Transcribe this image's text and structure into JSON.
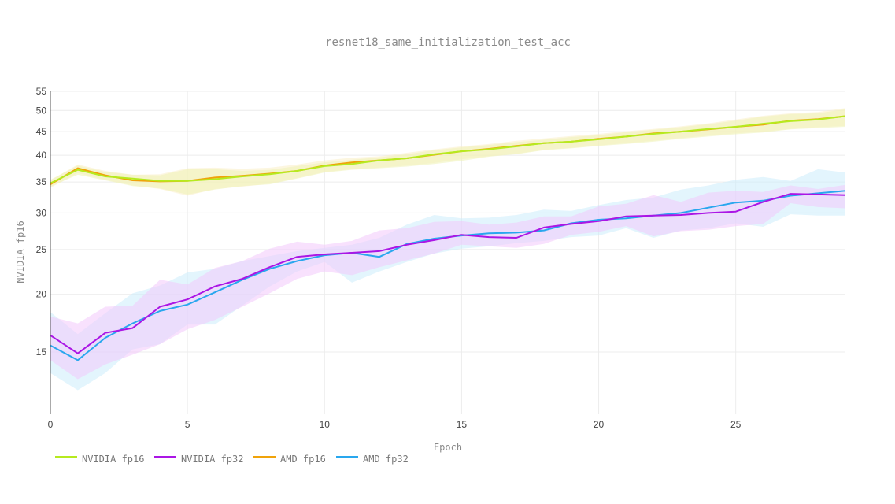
{
  "chart_data": {
    "type": "line",
    "title": "resnet18_same_initialization_test_acc",
    "xlabel": "Epoch",
    "ylabel": "NVIDIA fp16",
    "y_scale": "log",
    "xlim": [
      0,
      29
    ],
    "ylim": [
      11,
      55
    ],
    "x_ticks": [
      0,
      5,
      10,
      15,
      20,
      25
    ],
    "y_ticks": [
      15,
      20,
      25,
      30,
      35,
      40,
      45,
      50,
      55
    ],
    "grid": true,
    "legend_position": "bottom-left",
    "x": [
      0,
      1,
      2,
      3,
      4,
      5,
      6,
      7,
      8,
      9,
      10,
      11,
      12,
      13,
      14,
      15,
      16,
      17,
      18,
      19,
      20,
      21,
      22,
      23,
      24,
      25,
      26,
      27,
      28,
      29
    ],
    "series": [
      {
        "name": "NVIDIA fp16",
        "color": "#b6ea1f",
        "band_color": "#eef3b6",
        "values": [
          34.8,
          37.2,
          36.0,
          35.6,
          35.2,
          35.2,
          35.5,
          36.0,
          36.4,
          37.0,
          37.9,
          38.3,
          39.0,
          39.4,
          40.2,
          40.8,
          41.2,
          41.8,
          42.5,
          42.8,
          43.3,
          43.9,
          44.5,
          45.0,
          45.6,
          46.1,
          46.8,
          47.4,
          47.8,
          48.6
        ],
        "band_low": [
          34.2,
          36.3,
          35.3,
          34.3,
          33.9,
          32.9,
          33.7,
          34.3,
          34.6,
          35.6,
          36.7,
          37.2,
          37.5,
          37.8,
          38.3,
          38.9,
          39.7,
          40.2,
          41.0,
          41.4,
          41.9,
          42.3,
          42.8,
          43.4,
          43.9,
          44.4,
          44.8,
          45.5,
          45.8,
          46.1
        ],
        "band_high": [
          35.4,
          38.0,
          36.8,
          36.3,
          36.2,
          37.3,
          37.3,
          37.0,
          37.2,
          37.9,
          38.6,
          39.1,
          39.6,
          40.2,
          41.0,
          41.6,
          42.1,
          42.7,
          43.2,
          43.8,
          44.2,
          44.9,
          45.4,
          46.0,
          46.7,
          47.5,
          48.5,
          49.1,
          49.3,
          50.3
        ]
      },
      {
        "name": "NVIDIA fp32",
        "color": "#ab16e5",
        "band_color": "#f3c9fb",
        "values": [
          16.3,
          14.9,
          16.5,
          16.9,
          18.8,
          19.5,
          20.8,
          21.6,
          22.9,
          24.1,
          24.4,
          24.6,
          24.8,
          25.6,
          26.2,
          26.9,
          26.6,
          26.5,
          27.9,
          28.4,
          28.8,
          29.5,
          29.6,
          29.7,
          30.0,
          30.2,
          31.7,
          33.0,
          32.9,
          32.8
        ],
        "band_low": [
          14.4,
          13.1,
          14.1,
          14.8,
          15.6,
          16.8,
          17.6,
          18.8,
          20.1,
          21.6,
          22.4,
          22.0,
          22.9,
          23.7,
          24.5,
          25.6,
          25.4,
          25.2,
          25.7,
          26.9,
          27.3,
          28.1,
          26.7,
          27.4,
          27.6,
          28.1,
          28.4,
          31.5,
          30.9,
          30.7
        ],
        "band_high": [
          17.9,
          17.3,
          18.8,
          18.9,
          21.5,
          21.0,
          22.8,
          23.6,
          25.1,
          26.0,
          25.6,
          26.1,
          27.5,
          27.8,
          28.7,
          28.8,
          28.3,
          28.6,
          29.5,
          29.5,
          31.0,
          31.4,
          32.8,
          31.7,
          33.2,
          33.5,
          33.3,
          34.4,
          33.8,
          34.5
        ]
      },
      {
        "name": "AMD fp16",
        "color": "#f0a30a",
        "band_color": "#f9efc6",
        "values": [
          34.6,
          37.5,
          36.2,
          35.3,
          35.1,
          35.2,
          35.8,
          36.1,
          36.5,
          37.0,
          38.0,
          38.6,
          39.0,
          39.4,
          40.1,
          40.8,
          41.3,
          41.9,
          42.5,
          42.8,
          43.4,
          43.9,
          44.6,
          45.0,
          45.5,
          46.1,
          46.6,
          47.5,
          47.9,
          48.6
        ],
        "band_low": [
          34.0,
          36.6,
          35.4,
          34.4,
          33.8,
          32.7,
          33.8,
          34.2,
          34.7,
          35.7,
          36.8,
          37.3,
          37.6,
          38.0,
          38.5,
          39.2,
          39.8,
          40.3,
          41.1,
          41.5,
          42.0,
          42.5,
          43.0,
          43.6,
          44.1,
          44.6,
          45.0,
          45.6,
          46.0,
          46.3
        ],
        "band_high": [
          35.3,
          38.2,
          37.0,
          36.3,
          36.4,
          37.5,
          37.6,
          37.4,
          37.6,
          38.2,
          39.0,
          39.5,
          39.8,
          40.5,
          41.2,
          41.8,
          42.3,
          43.0,
          43.5,
          44.0,
          44.5,
          45.1,
          45.6,
          46.2,
          46.9,
          47.8,
          48.7,
          49.3,
          49.6,
          50.6
        ]
      },
      {
        "name": "AMD fp32",
        "color": "#29a7ee",
        "band_color": "#ccecfb",
        "values": [
          15.5,
          14.4,
          16.1,
          17.3,
          18.4,
          19.0,
          20.2,
          21.5,
          22.7,
          23.6,
          24.3,
          24.6,
          24.1,
          25.7,
          26.4,
          26.8,
          27.1,
          27.2,
          27.5,
          28.5,
          29.0,
          29.2,
          29.6,
          30.0,
          30.8,
          31.6,
          31.9,
          32.7,
          33.1,
          33.5
        ],
        "band_low": [
          13.5,
          12.4,
          13.5,
          15.2,
          15.6,
          17.2,
          17.2,
          18.9,
          20.8,
          22.4,
          23.5,
          21.2,
          22.4,
          23.5,
          24.5,
          25.1,
          25.4,
          25.8,
          26.1,
          26.6,
          26.8,
          27.8,
          26.5,
          27.5,
          27.8,
          28.5,
          28.0,
          29.8,
          29.6,
          29.6
        ],
        "band_high": [
          18.3,
          16.4,
          18.2,
          20.1,
          20.9,
          22.3,
          22.7,
          23.6,
          24.2,
          24.8,
          25.2,
          25.6,
          26.5,
          28.3,
          29.7,
          29.2,
          29.3,
          29.7,
          30.5,
          30.3,
          31.2,
          32.0,
          32.4,
          33.7,
          34.4,
          35.4,
          35.9,
          35.2,
          37.3,
          36.7
        ]
      }
    ]
  }
}
